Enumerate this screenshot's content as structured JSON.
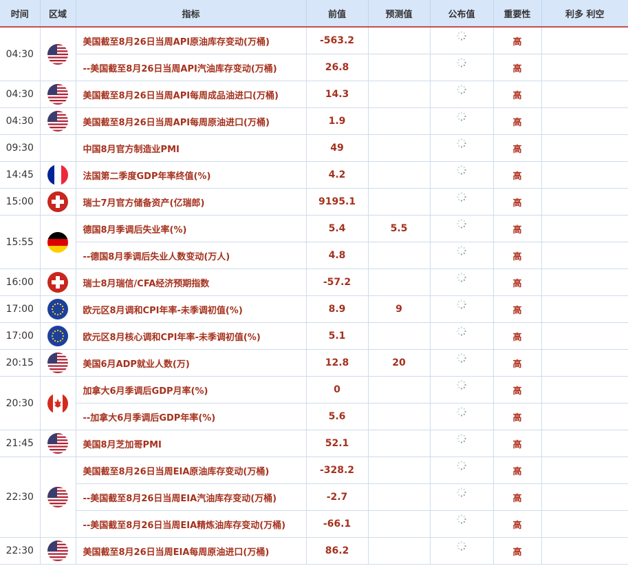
{
  "headers": [
    "时间",
    "区域",
    "指标",
    "前值",
    "预测值",
    "公布值",
    "重要性",
    "利多 利空"
  ],
  "groups": [
    {
      "time": "04:30",
      "flag": "us",
      "rows": [
        {
          "indicator": "美国截至8月26日当周API原油库存变动(万桶)",
          "previous": "-563.2",
          "forecast": "",
          "importance": "高"
        },
        {
          "indicator": "--美国截至8月26日当周API汽油库存变动(万桶)",
          "previous": "26.8",
          "forecast": "",
          "importance": "高"
        }
      ]
    },
    {
      "time": "04:30",
      "flag": "us",
      "rows": [
        {
          "indicator": "美国截至8月26日当周API每周成品油进口(万桶)",
          "previous": "14.3",
          "forecast": "",
          "importance": "高"
        }
      ]
    },
    {
      "time": "04:30",
      "flag": "us",
      "rows": [
        {
          "indicator": "美国截至8月26日当周API每周原油进口(万桶)",
          "previous": "1.9",
          "forecast": "",
          "importance": "高"
        }
      ]
    },
    {
      "time": "09:30",
      "flag": "",
      "rows": [
        {
          "indicator": "中国8月官方制造业PMI",
          "previous": "49",
          "forecast": "",
          "importance": "高"
        }
      ]
    },
    {
      "time": "14:45",
      "flag": "fr",
      "rows": [
        {
          "indicator": "法国第二季度GDP年率终值(%)",
          "previous": "4.2",
          "forecast": "",
          "importance": "高"
        }
      ]
    },
    {
      "time": "15:00",
      "flag": "ch",
      "rows": [
        {
          "indicator": "瑞士7月官方储备资产(亿瑞郎)",
          "previous": "9195.1",
          "forecast": "",
          "importance": "高"
        }
      ]
    },
    {
      "time": "15:55",
      "flag": "de",
      "rows": [
        {
          "indicator": "德国8月季调后失业率(%)",
          "previous": "5.4",
          "forecast": "5.5",
          "importance": "高"
        },
        {
          "indicator": "--德国8月季调后失业人数变动(万人)",
          "previous": "4.8",
          "forecast": "",
          "importance": "高"
        }
      ]
    },
    {
      "time": "16:00",
      "flag": "ch",
      "rows": [
        {
          "indicator": "瑞士8月瑞信/CFA经济预期指数",
          "previous": "-57.2",
          "forecast": "",
          "importance": "高"
        }
      ]
    },
    {
      "time": "17:00",
      "flag": "eu",
      "rows": [
        {
          "indicator": "欧元区8月调和CPI年率-未季调初值(%)",
          "previous": "8.9",
          "forecast": "9",
          "importance": "高"
        }
      ]
    },
    {
      "time": "17:00",
      "flag": "eu",
      "rows": [
        {
          "indicator": "欧元区8月核心调和CPI年率-未季调初值(%)",
          "previous": "5.1",
          "forecast": "",
          "importance": "高"
        }
      ]
    },
    {
      "time": "20:15",
      "flag": "us",
      "rows": [
        {
          "indicator": "美国6月ADP就业人数(万)",
          "previous": "12.8",
          "forecast": "20",
          "importance": "高"
        }
      ]
    },
    {
      "time": "20:30",
      "flag": "ca",
      "rows": [
        {
          "indicator": "加拿大6月季调后GDP月率(%)",
          "previous": "0",
          "forecast": "",
          "importance": "高"
        },
        {
          "indicator": "--加拿大6月季调后GDP年率(%)",
          "previous": "5.6",
          "forecast": "",
          "importance": "高"
        }
      ]
    },
    {
      "time": "21:45",
      "flag": "us",
      "rows": [
        {
          "indicator": "美国8月芝加哥PMI",
          "previous": "52.1",
          "forecast": "",
          "importance": "高"
        }
      ]
    },
    {
      "time": "22:30",
      "flag": "us",
      "rows": [
        {
          "indicator": "美国截至8月26日当周EIA原油库存变动(万桶)",
          "previous": "-328.2",
          "forecast": "",
          "importance": "高"
        },
        {
          "indicator": "--美国截至8月26日当周EIA汽油库存变动(万桶)",
          "previous": "-2.7",
          "forecast": "",
          "importance": "高"
        },
        {
          "indicator": "--美国截至8月26日当周EIA精炼油库存变动(万桶)",
          "previous": "-66.1",
          "forecast": "",
          "importance": "高"
        }
      ]
    },
    {
      "time": "22:30",
      "flag": "us",
      "rows": [
        {
          "indicator": "美国截至8月26日当周EIA每周原油进口(万桶)",
          "previous": "86.2",
          "forecast": "",
          "importance": "高"
        }
      ]
    }
  ]
}
